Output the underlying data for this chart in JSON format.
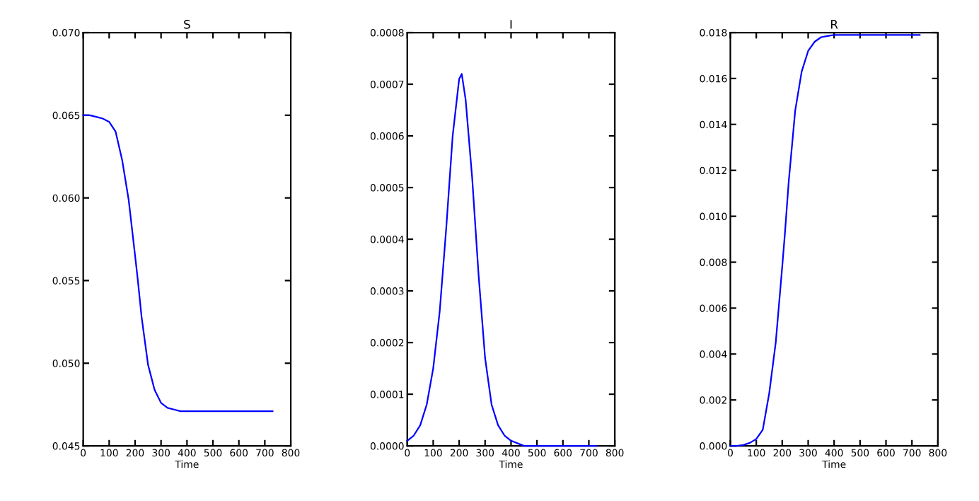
{
  "chart_data": [
    {
      "type": "line",
      "title": "S",
      "xlabel": "Time",
      "color": "#0000ff",
      "x": [
        0,
        25,
        50,
        75,
        100,
        125,
        150,
        175,
        200,
        210,
        225,
        250,
        275,
        300,
        325,
        350,
        375,
        400,
        450,
        500,
        600,
        730
      ],
      "values": [
        0.065,
        0.065,
        0.0649,
        0.0648,
        0.0646,
        0.064,
        0.0623,
        0.0599,
        0.0565,
        0.0551,
        0.0528,
        0.0499,
        0.0484,
        0.0476,
        0.0473,
        0.0472,
        0.0471,
        0.0471,
        0.0471,
        0.0471,
        0.0471,
        0.0471
      ],
      "xlim": [
        0,
        800
      ],
      "xticks": [
        0,
        100,
        200,
        300,
        400,
        500,
        600,
        700,
        800
      ],
      "ylim": [
        0.045,
        0.07
      ],
      "yticks": [
        {
          "value": 0.045,
          "label": "0.045"
        },
        {
          "value": 0.05,
          "label": "0.050"
        },
        {
          "value": 0.055,
          "label": "0.055"
        },
        {
          "value": 0.06,
          "label": "0.060"
        },
        {
          "value": 0.065,
          "label": "0.065"
        },
        {
          "value": 0.07,
          "label": "0.070"
        }
      ]
    },
    {
      "type": "line",
      "title": "I",
      "xlabel": "Time",
      "color": "#0000ff",
      "x": [
        0,
        25,
        50,
        75,
        100,
        125,
        150,
        175,
        200,
        210,
        225,
        250,
        275,
        300,
        325,
        350,
        375,
        400,
        450,
        500,
        600,
        730
      ],
      "values": [
        1e-05,
        2e-05,
        4e-05,
        8e-05,
        0.00015,
        0.00026,
        0.00042,
        0.0006,
        0.00071,
        0.00072,
        0.00067,
        0.00052,
        0.00033,
        0.00017,
        8e-05,
        4e-05,
        2e-05,
        1e-05,
        0,
        0,
        0,
        0
      ],
      "xlim": [
        0,
        800
      ],
      "xticks": [
        0,
        100,
        200,
        300,
        400,
        500,
        600,
        700,
        800
      ],
      "ylim": [
        0,
        0.0008
      ],
      "yticks": [
        {
          "value": 0,
          "label": "0.0000"
        },
        {
          "value": 0.0001,
          "label": "0.0001"
        },
        {
          "value": 0.0002,
          "label": "0.0002"
        },
        {
          "value": 0.0003,
          "label": "0.0003"
        },
        {
          "value": 0.0004,
          "label": "0.0004"
        },
        {
          "value": 0.0005,
          "label": "0.0005"
        },
        {
          "value": 0.0006,
          "label": "0.0006"
        },
        {
          "value": 0.0007,
          "label": "0.0007"
        },
        {
          "value": 0.0008,
          "label": "0.0008"
        }
      ]
    },
    {
      "type": "line",
      "title": "R",
      "xlabel": "Time",
      "color": "#0000ff",
      "x": [
        0,
        25,
        50,
        75,
        100,
        125,
        150,
        175,
        200,
        210,
        225,
        250,
        275,
        300,
        325,
        350,
        375,
        400,
        450,
        500,
        600,
        730
      ],
      "values": [
        0,
        0,
        4e-05,
        0.00013,
        0.0003,
        0.0007,
        0.0023,
        0.0045,
        0.0078,
        0.0092,
        0.0115,
        0.0146,
        0.0163,
        0.0172,
        0.0176,
        0.0178,
        0.01785,
        0.0179,
        0.0179,
        0.0179,
        0.0179,
        0.0179
      ],
      "xlim": [
        0,
        800
      ],
      "xticks": [
        0,
        100,
        200,
        300,
        400,
        500,
        600,
        700,
        800
      ],
      "ylim": [
        0,
        0.018
      ],
      "yticks": [
        {
          "value": 0,
          "label": "0.000"
        },
        {
          "value": 0.002,
          "label": "0.002"
        },
        {
          "value": 0.004,
          "label": "0.004"
        },
        {
          "value": 0.006,
          "label": "0.006"
        },
        {
          "value": 0.008,
          "label": "0.008"
        },
        {
          "value": 0.01,
          "label": "0.010"
        },
        {
          "value": 0.012,
          "label": "0.012"
        },
        {
          "value": 0.014,
          "label": "0.014"
        },
        {
          "value": 0.016,
          "label": "0.016"
        },
        {
          "value": 0.018,
          "label": "0.018"
        }
      ]
    }
  ]
}
